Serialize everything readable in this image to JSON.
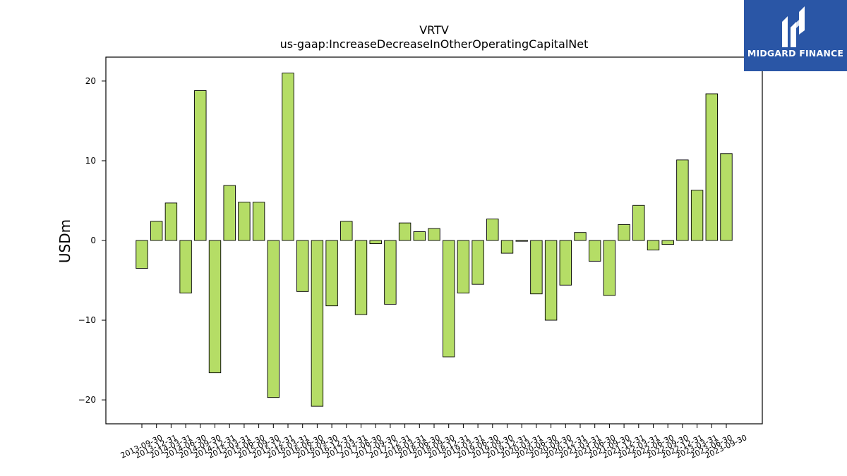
{
  "brand": {
    "name": "MIDGARD FINANCE",
    "icon": "midgard-logo-icon",
    "background_color": "#2a56a6"
  },
  "chart_data": {
    "type": "bar",
    "title": "VRTV",
    "subtitle": "us-gaap:IncreaseDecreaseInOtherOperatingCapitalNet",
    "xlabel": "",
    "ylabel": "USDm",
    "ylim": [
      -23,
      23
    ],
    "yticks": [
      -20,
      -10,
      0,
      10,
      20
    ],
    "grid": false,
    "bar_color": "#b5dd66",
    "edge_color": "#000000",
    "categories": [
      "2013-09-30",
      "2013-12-31",
      "2014-03-31",
      "2014-06-30",
      "2014-09-30",
      "2014-12-31",
      "2015-03-31",
      "2015-06-30",
      "2015-09-30",
      "2015-12-31",
      "2016-03-31",
      "2016-06-30",
      "2016-09-30",
      "2016-12-31",
      "2017-03-31",
      "2017-06-30",
      "2017-09-30",
      "2017-12-31",
      "2018-03-31",
      "2018-06-30",
      "2018-09-30",
      "2018-12-31",
      "2019-03-31",
      "2019-06-30",
      "2019-09-30",
      "2019-12-31",
      "2020-03-31",
      "2020-06-30",
      "2020-09-30",
      "2020-12-31",
      "2021-03-31",
      "2021-06-30",
      "2021-09-30",
      "2021-12-31",
      "2022-03-31",
      "2022-06-30",
      "2022-09-30",
      "2022-12-31",
      "2023-03-31",
      "2023-06-30",
      "2023-09-30"
    ],
    "values": [
      -3.5,
      2.4,
      4.7,
      -6.6,
      18.8,
      -16.6,
      6.9,
      4.8,
      4.8,
      -19.7,
      21.0,
      -6.4,
      -20.8,
      -8.2,
      2.4,
      -9.3,
      -0.4,
      -8.0,
      2.2,
      1.1,
      1.5,
      -14.6,
      -6.6,
      -5.5,
      2.7,
      -1.6,
      -0.1,
      -6.7,
      -10.0,
      -5.6,
      1.0,
      -2.6,
      -6.9,
      2.0,
      4.4,
      -1.2,
      -0.5,
      10.1,
      6.3,
      18.4,
      10.9
    ]
  }
}
